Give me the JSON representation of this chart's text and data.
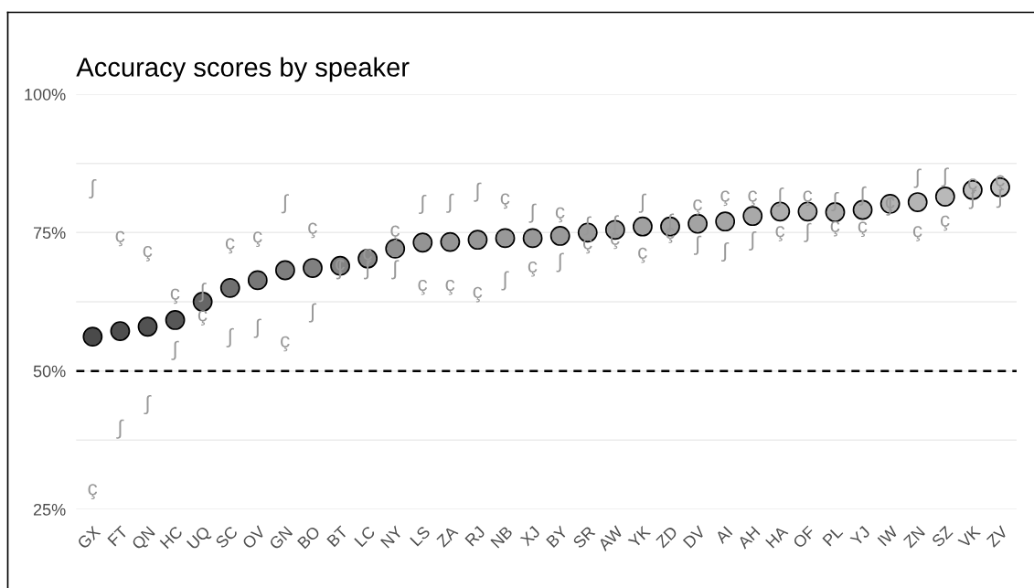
{
  "chart_data": {
    "type": "scatter",
    "title": "Accuracy scores by speaker",
    "categories": [
      "GX",
      "FT",
      "QN",
      "HC",
      "UQ",
      "SC",
      "OV",
      "GN",
      "BO",
      "BT",
      "LC",
      "NY",
      "LS",
      "ZA",
      "RJ",
      "NB",
      "XJ",
      "BY",
      "SR",
      "AW",
      "YK",
      "ZD",
      "DV",
      "AI",
      "AH",
      "HA",
      "OF",
      "PL",
      "YJ",
      "IW",
      "ZN",
      "SZ",
      "VK",
      "ZV"
    ],
    "series": [
      {
        "values": [
          56.2,
          57.2,
          58.0,
          59.2,
          62.5,
          65.0,
          66.4,
          68.2,
          68.6,
          69.0,
          70.3,
          72.1,
          73.2,
          73.3,
          73.7,
          74.0,
          74.0,
          74.4,
          75.0,
          75.5,
          76.1,
          76.1,
          76.6,
          77.0,
          78.0,
          78.8,
          78.8,
          78.7,
          79.1,
          80.2,
          80.5,
          81.5,
          82.7,
          83.2
        ],
        "colors": [
          "#4a4a4a",
          "#4e4e4e",
          "#525252",
          "#575757",
          "#666666",
          "#707070",
          "#777777",
          "#7e7e7e",
          "#808080",
          "#828282",
          "#888888",
          "#8f8f8f",
          "#949494",
          "#959595",
          "#969696",
          "#989898",
          "#989898",
          "#9a9a9a",
          "#9c9c9c",
          "#9e9e9e",
          "#a1a1a1",
          "#a1a1a1",
          "#a3a3a3",
          "#a5a5a5",
          "#a9a9a9",
          "#adadad",
          "#adadad",
          "#acacac",
          "#aeaeae",
          "#b3b3b3",
          "#b4b4b4",
          "#b9b9b9",
          "#bebebe",
          "#c0c0c0"
        ],
        "marker": "circle"
      },
      {
        "values": [
          28.2,
          73.9,
          71.2,
          63.5,
          59.6,
          72.6,
          73.8,
          54.9,
          75.4,
          68.8,
          70.7,
          74.9,
          65.1,
          65.1,
          63.8,
          80.7,
          68.4,
          78.2,
          72.6,
          73.4,
          70.9,
          74.5,
          79.6,
          81.2,
          81.2,
          74.8,
          81.2,
          75.7,
          75.6,
          80.0,
          74.8,
          76.7,
          83.4,
          84.0
        ],
        "color": "#999999"
      },
      {
        "values": [
          82.9,
          39.5,
          43.9,
          53.7,
          64.2,
          56.0,
          57.7,
          80.2,
          60.5,
          68.3,
          68.3,
          68.3,
          80.1,
          80.3,
          82.3,
          66.3,
          78.5,
          69.6,
          76.2,
          76.4,
          80.3,
          76.7,
          72.7,
          71.5,
          73.5,
          81.4,
          75.0,
          80.6,
          81.6,
          79.8,
          84.8,
          85.0,
          81.0,
          81.2
        ],
        "color": "#999999"
      }
    ],
    "ylim": [
      25,
      100
    ],
    "yticks": [
      {
        "value": 25,
        "label": "25%"
      },
      {
        "value": 37.5,
        "label": null
      },
      {
        "value": 50,
        "label": "50%"
      },
      {
        "value": 62.5,
        "label": null
      },
      {
        "value": 75,
        "label": "75%"
      },
      {
        "value": 87.5,
        "label": null
      },
      {
        "value": 100,
        "label": "100%"
      }
    ],
    "grid": "y",
    "ref_lines": [
      {
        "axis": "y",
        "value": 50,
        "color": "#000000",
        "line_style": "dashed"
      }
    ]
  }
}
